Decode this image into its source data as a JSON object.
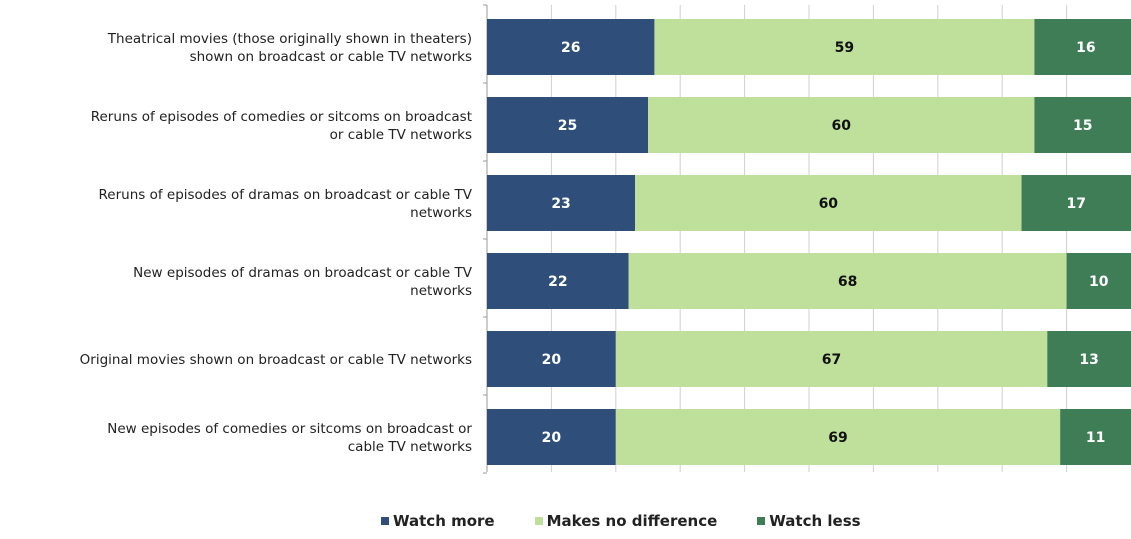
{
  "chart_data": {
    "type": "bar",
    "orientation": "horizontal",
    "stacked": true,
    "percent_stacked": true,
    "categories": [
      "Theatrical movies (those originally shown in theaters) shown on broadcast or cable TV networks",
      "Reruns of episodes of comedies or sitcoms on broadcast or cable TV networks",
      "Reruns of episodes of dramas on broadcast or cable TV networks",
      "New episodes of dramas on broadcast or cable TV networks",
      "Original movies shown on broadcast or cable TV networks",
      "New episodes of comedies or sitcoms on broadcast or cable TV networks"
    ],
    "category_label_lines": [
      [
        "Theatrical movies (those originally shown in theaters)",
        "shown on broadcast or cable TV networks"
      ],
      [
        "Reruns of episodes of comedies or sitcoms on broadcast",
        "or cable TV networks"
      ],
      [
        "Reruns of episodes of dramas on broadcast or cable TV",
        "networks"
      ],
      [
        "New episodes of dramas on broadcast or cable TV",
        "networks"
      ],
      [
        "Original movies shown on broadcast or cable TV networks"
      ],
      [
        "New episodes of comedies or sitcoms on broadcast or",
        "cable TV networks"
      ]
    ],
    "series": [
      {
        "name": "Watch more",
        "color": "#2f4f7a",
        "label_color": "#ffffff",
        "values": [
          26,
          25,
          23,
          22,
          20,
          20
        ]
      },
      {
        "name": "Makes no difference",
        "color": "#bfe09b",
        "label_color": "#111111",
        "values": [
          59,
          60,
          60,
          68,
          67,
          69
        ]
      },
      {
        "name": "Watch less",
        "color": "#3f7d57",
        "label_color": "#ffffff",
        "values": [
          16,
          15,
          17,
          10,
          13,
          11
        ]
      }
    ],
    "title": "",
    "xlabel": "",
    "ylabel": "",
    "xlim": [
      0,
      100
    ],
    "grid": true,
    "legend_position": "bottom"
  }
}
